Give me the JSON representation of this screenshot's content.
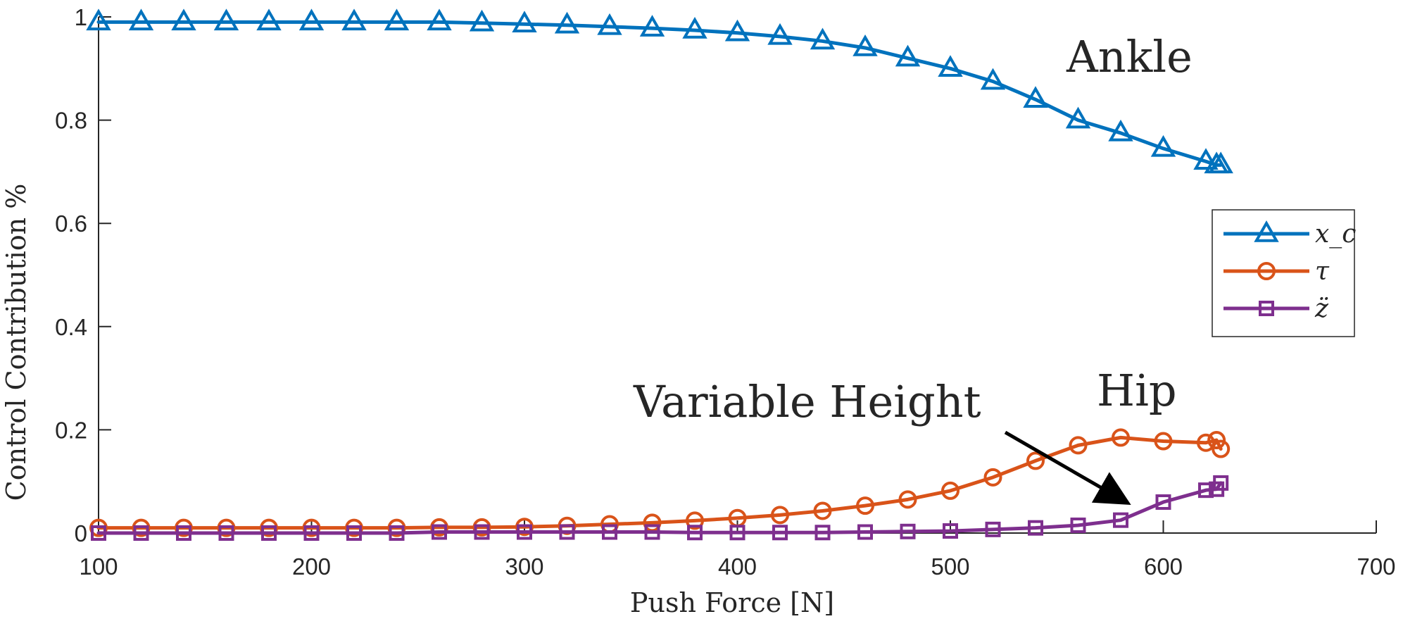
{
  "chart_data": {
    "type": "line",
    "title": "",
    "xlabel": "Push Force [N]",
    "ylabel": "Control Contribution %",
    "xlim": [
      100,
      700
    ],
    "ylim": [
      0,
      1
    ],
    "x_ticks": [
      "100",
      "200",
      "300",
      "400",
      "500",
      "600",
      "700"
    ],
    "y_ticks": [
      "0",
      "0.2",
      "0.4",
      "0.6",
      "0.8",
      "1"
    ],
    "grid": false,
    "legend_position": "right",
    "series": [
      {
        "name": "x_c",
        "color": "#0072BD",
        "marker": "triangle",
        "x": [
          100,
          120,
          140,
          160,
          180,
          200,
          220,
          240,
          260,
          280,
          300,
          320,
          340,
          360,
          380,
          400,
          420,
          440,
          460,
          480,
          500,
          520,
          540,
          560,
          580,
          600,
          620,
          625,
          627
        ],
        "y": [
          0.99,
          0.99,
          0.99,
          0.99,
          0.99,
          0.99,
          0.99,
          0.99,
          0.99,
          0.988,
          0.986,
          0.984,
          0.981,
          0.978,
          0.974,
          0.969,
          0.962,
          0.953,
          0.94,
          0.92,
          0.9,
          0.875,
          0.84,
          0.8,
          0.775,
          0.745,
          0.72,
          0.713,
          0.713
        ]
      },
      {
        "name": "τ",
        "color": "#D95319",
        "marker": "circle",
        "x": [
          100,
          120,
          140,
          160,
          180,
          200,
          220,
          240,
          260,
          280,
          300,
          320,
          340,
          360,
          380,
          400,
          420,
          440,
          460,
          480,
          500,
          520,
          540,
          560,
          580,
          600,
          620,
          625,
          627
        ],
        "y": [
          0.01,
          0.01,
          0.01,
          0.01,
          0.01,
          0.01,
          0.01,
          0.01,
          0.011,
          0.011,
          0.012,
          0.014,
          0.017,
          0.02,
          0.024,
          0.029,
          0.035,
          0.043,
          0.053,
          0.065,
          0.082,
          0.108,
          0.14,
          0.17,
          0.185,
          0.178,
          0.175,
          0.18,
          0.163
        ]
      },
      {
        "name": "z̈",
        "color": "#7E2F8E",
        "marker": "square",
        "x": [
          100,
          120,
          140,
          160,
          180,
          200,
          220,
          240,
          260,
          280,
          300,
          320,
          340,
          360,
          380,
          400,
          420,
          440,
          460,
          480,
          500,
          520,
          540,
          560,
          580,
          600,
          620,
          625,
          627
        ],
        "y": [
          0.0,
          0.0,
          0.0,
          0.0,
          0.0,
          0.0,
          0.0,
          0.0,
          0.002,
          0.002,
          0.002,
          0.002,
          0.002,
          0.002,
          0.001,
          0.001,
          0.001,
          0.001,
          0.002,
          0.003,
          0.004,
          0.007,
          0.01,
          0.015,
          0.025,
          0.06,
          0.083,
          0.085,
          0.097
        ]
      }
    ],
    "annotations": [
      {
        "text": "Ankle",
        "x": 570,
        "y": 0.9
      },
      {
        "text": "Hip",
        "x": 585,
        "y": 0.27
      },
      {
        "text": "Variable Height",
        "x": 440,
        "y": 0.25,
        "arrow_from": [
          540,
          0.198
        ],
        "arrow_to": [
          582,
          0.062
        ]
      }
    ]
  }
}
